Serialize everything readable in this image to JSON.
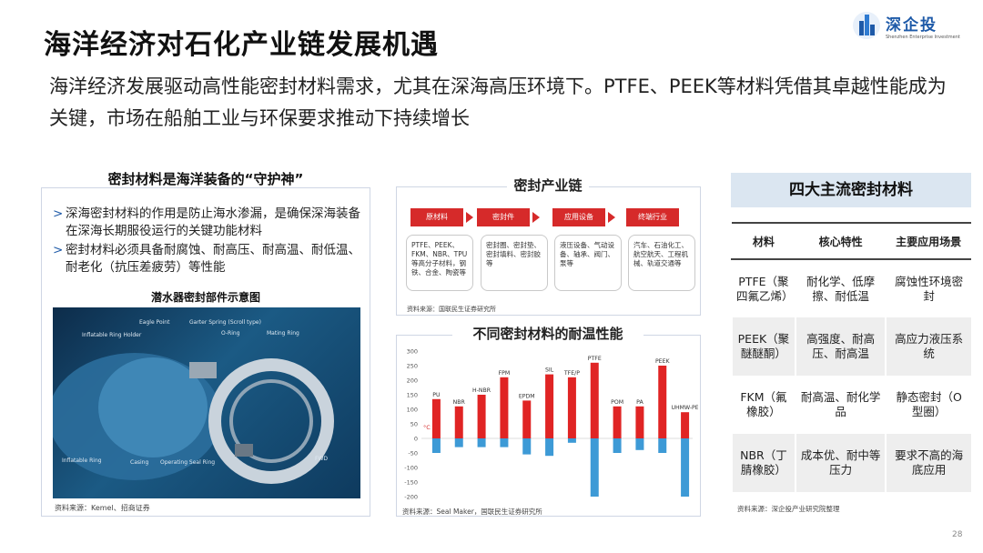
{
  "title": "海洋经济对石化产业链发展机遇",
  "subtitle": "海洋经济发展驱动高性能密封材料需求，尤其在深海高压环境下。PTFE、PEEK等材料凭借其卓越性能成为关键，市场在船舶工业与环保要求推动下持续增长",
  "logo": {
    "cn": "深企投",
    "en": "Shenzhen Enterprise Investment"
  },
  "left_panel": {
    "header": "密封材料是海洋装备的“守护神”",
    "bullets": [
      "深海密封材料的作用是防止海水渗漏，是确保深海装备在深海长期服役运行的关键功能材料",
      "密封材料必须具备耐腐蚀、耐高压、耐高温、耐低温、耐老化（抗压差疲劳）等性能"
    ],
    "figure_title": "潜水器密封部件示意图",
    "figure_labels": [
      "Eagle Point",
      "Garter Spring (Scroll type)",
      "Inflatable Ring Holder",
      "O-Ring",
      "Mating Ring",
      "Inflatable Ring",
      "Casing",
      "Operating Seal Ring",
      "FWD"
    ],
    "source": "资料来源：Kemel、招商证券"
  },
  "chain": {
    "header": "密封产业链",
    "stages": [
      {
        "label": "原材料",
        "desc": "PTFE、PEEK、FKM、NBR、TPU等高分子材料，钢铁、合金、陶瓷等"
      },
      {
        "label": "密封件",
        "desc": "密封圈、密封垫、密封填料、密封胶等"
      },
      {
        "label": "应用设备",
        "desc": "液压设备、气动设备、轴承、阀门、泵等"
      },
      {
        "label": "终端行业",
        "desc": "汽车、石油化工、航空航天、工程机械、轨道交通等"
      }
    ],
    "source": "资料来源：国联民生证券研究所"
  },
  "temp_chart": {
    "header": "不同密封材料的耐温性能",
    "source": "资料来源：Seal Maker，国联民生证券研究所"
  },
  "chart_data": {
    "type": "bar",
    "categories": [
      "PU",
      "NBR",
      "H-NBR",
      "FPM",
      "EPDM",
      "SIL",
      "TFE/P",
      "PTFE",
      "POM",
      "PA",
      "PEEK",
      "UHMW-PE"
    ],
    "unit_label": "°C",
    "series": [
      {
        "values_max": [
          135,
          110,
          150,
          210,
          130,
          220,
          210,
          260,
          110,
          110,
          250,
          90
        ]
      },
      {
        "values_min": [
          -50,
          -30,
          -30,
          -30,
          -55,
          -60,
          -15,
          -200,
          -50,
          -40,
          -50,
          -200
        ]
      }
    ],
    "ylim": [
      -200,
      300
    ],
    "yticks": [
      300,
      250,
      200,
      150,
      100,
      50,
      0,
      -50,
      -100,
      -150,
      -200
    ],
    "colors": {
      "high": "#e02424",
      "low": "#3d9ad6"
    }
  },
  "table": {
    "header": "四大主流密封材料",
    "columns": [
      "材料",
      "核心特性",
      "主要应用场景"
    ],
    "rows": [
      [
        "PTFE（聚四氟乙烯）",
        "耐化学、低摩擦、耐低温",
        "腐蚀性环境密封"
      ],
      [
        "PEEK（聚醚醚酮）",
        "高强度、耐高压、耐高温",
        "高应力液压系统"
      ],
      [
        "FKM（氟橡胶）",
        "耐高温、耐化学品",
        "静态密封（O型圈）"
      ],
      [
        "NBR（丁腈橡胶）",
        "成本优、耐中等压力",
        "要求不高的海底应用"
      ]
    ],
    "source": "资料来源：深企投产业研究院整理"
  },
  "page_number": "28"
}
